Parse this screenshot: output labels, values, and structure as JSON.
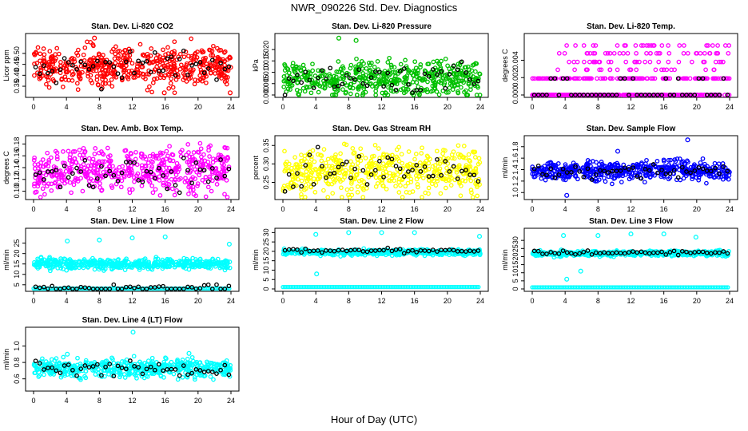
{
  "main_title": "NWR_090226  Std. Dev. Diagnostics",
  "x_label": "Hour of Day (UTC)",
  "chart_data": [
    {
      "type": "scatter",
      "title": "Stan. Dev. Li-820 CO2",
      "ylabel": "Licor ppm",
      "color": "#ff0000",
      "xlim": [
        0,
        24
      ],
      "ylim": [
        0.31,
        0.58
      ],
      "yticks": [
        0.35,
        0.4,
        0.45,
        0.5
      ],
      "xticks": [
        0,
        4,
        8,
        12,
        16,
        20,
        24
      ],
      "center": 0.44,
      "spread": 0.045,
      "outliers": [
        {
          "x": 7.4,
          "y": 0.57
        },
        {
          "x": 15.9,
          "y": 0.32
        },
        {
          "x": 23.9,
          "y": 0.32
        }
      ],
      "black_center": 0.44
    },
    {
      "type": "scatter",
      "title": "Stan. Dev. Li-820 Pressure",
      "ylabel": "kPa",
      "color": "#00c000",
      "xlim": [
        0,
        24
      ],
      "ylim": [
        0,
        0.026
      ],
      "yticks": [
        0.0,
        0.005,
        0.01,
        0.015,
        0.02
      ],
      "xticks": [
        0,
        4,
        8,
        12,
        16,
        20,
        24
      ],
      "center": 0.007,
      "spread": 0.004,
      "outliers": [
        {
          "x": 6.8,
          "y": 0.025
        },
        {
          "x": 8.9,
          "y": 0.024
        }
      ],
      "black_center": 0.007
    },
    {
      "type": "scatter",
      "title": "Stan. Dev. Li-820 Temp.",
      "ylabel": "degrees C",
      "color": "#ff00ff",
      "xlim": [
        0,
        24
      ],
      "ylim": [
        0,
        0.0068
      ],
      "yticks": [
        0.0,
        0.002,
        0.004
      ],
      "xticks": [
        0,
        4,
        8,
        12,
        16,
        20,
        24
      ],
      "levels": [
        0,
        0.0019,
        0.0029,
        0.0038,
        0.0048,
        0.0057
      ],
      "outliers": [],
      "black_center": 0.001
    },
    {
      "type": "scatter",
      "title": "Stan. Dev. Amb. Box Temp.",
      "ylabel": "degrees C",
      "color": "#ff00ff",
      "xlim": [
        0,
        24
      ],
      "ylim": [
        0.09,
        0.19
      ],
      "yticks": [
        0.1,
        0.12,
        0.14,
        0.16,
        0.18
      ],
      "xticks": [
        0,
        4,
        8,
        12,
        16,
        20,
        24
      ],
      "center": 0.135,
      "spread": 0.018,
      "outliers": [
        {
          "x": 19.5,
          "y": 0.095
        }
      ],
      "black_center": 0.13
    },
    {
      "type": "scatter",
      "title": "Stan. Dev. Gas Stream RH",
      "ylabel": "percent",
      "color": "#ffff00",
      "xlim": [
        0,
        24
      ],
      "ylim": [
        0.21,
        0.37
      ],
      "yticks": [
        0.25,
        0.3,
        0.35
      ],
      "xticks": [
        0,
        4,
        8,
        12,
        16,
        20,
        24
      ],
      "center": 0.28,
      "spread": 0.03,
      "outliers": [],
      "black_center": 0.28
    },
    {
      "type": "scatter",
      "title": "Stan. Dev. Sample Flow",
      "ylabel": "ml/min",
      "color": "#0000ff",
      "xlim": [
        0,
        24
      ],
      "ylim": [
        0.92,
        1.95
      ],
      "yticks": [
        1.0,
        1.2,
        1.4,
        1.6,
        1.8
      ],
      "xticks": [
        0,
        4,
        8,
        12,
        16,
        20,
        24
      ],
      "center": 1.38,
      "spread": 0.08,
      "outliers": [
        {
          "x": 4.2,
          "y": 0.95
        },
        {
          "x": 18.9,
          "y": 1.92
        },
        {
          "x": 10.4,
          "y": 1.72
        }
      ],
      "black_center": 1.38
    },
    {
      "type": "scatter",
      "title": "Stan. Dev. Line 1 Flow",
      "ylabel": "ml/min",
      "color": "#00ffff",
      "xlim": [
        0,
        24
      ],
      "ylim": [
        3,
        31
      ],
      "yticks": [
        5,
        10,
        15,
        20,
        25
      ],
      "xticks": [
        0,
        4,
        8,
        12,
        16,
        20,
        24
      ],
      "center": 15,
      "spread": 1.2,
      "floor": 3.2,
      "outliers": [
        {
          "x": 4.1,
          "y": 26
        },
        {
          "x": 8,
          "y": 26.5
        },
        {
          "x": 12,
          "y": 27.5
        },
        {
          "x": 16,
          "y": 28
        },
        {
          "x": 23.8,
          "y": 24.5
        }
      ],
      "black_center": 3.4
    },
    {
      "type": "scatter",
      "title": "Stan. Dev. Line 2 Flow",
      "ylabel": "ml/min",
      "color": "#00ffff",
      "xlim": [
        0,
        24
      ],
      "ylim": [
        0,
        31
      ],
      "yticks": [
        0,
        5,
        10,
        15,
        20,
        25,
        30
      ],
      "xticks": [
        0,
        4,
        8,
        12,
        16,
        20,
        24
      ],
      "center": 19.5,
      "spread": 0.7,
      "floor": 1,
      "outliers": [
        {
          "x": 4,
          "y": 29
        },
        {
          "x": 4.1,
          "y": 8
        },
        {
          "x": 8,
          "y": 30
        },
        {
          "x": 12,
          "y": 30
        },
        {
          "x": 16,
          "y": 30
        },
        {
          "x": 23.9,
          "y": 28
        }
      ],
      "black_center": 20.5
    },
    {
      "type": "scatter",
      "title": "Stan. Dev. Line 3 Flow",
      "ylabel": "ml/min",
      "color": "#00ffff",
      "xlim": [
        0,
        24
      ],
      "ylim": [
        0,
        36
      ],
      "yticks": [
        0,
        5,
        10,
        15,
        20,
        25,
        30
      ],
      "xticks": [
        0,
        4,
        8,
        12,
        16,
        20,
        24
      ],
      "center": 22,
      "spread": 0.8,
      "floor": 1,
      "outliers": [
        {
          "x": 3.8,
          "y": 33
        },
        {
          "x": 4.2,
          "y": 6
        },
        {
          "x": 5.9,
          "y": 11
        },
        {
          "x": 8,
          "y": 33
        },
        {
          "x": 12,
          "y": 34
        },
        {
          "x": 16,
          "y": 34
        },
        {
          "x": 19.9,
          "y": 32
        }
      ],
      "black_center": 22.5
    },
    {
      "type": "scatter",
      "title": "Stan. Dev. Line 4 (LT) Flow",
      "ylabel": "ml/min",
      "color": "#00ffff",
      "xlim": [
        0,
        24
      ],
      "ylim": [
        0.48,
        1.2
      ],
      "yticks": [
        0.6,
        0.8,
        1.0
      ],
      "xticks": [
        0,
        4,
        8,
        12,
        16,
        20,
        24
      ],
      "center": 0.73,
      "spread": 0.055,
      "outliers": [
        {
          "x": 12.1,
          "y": 1.17
        },
        {
          "x": 4.1,
          "y": 0.9
        },
        {
          "x": 18.9,
          "y": 0.91
        }
      ],
      "black_center": 0.72
    }
  ]
}
